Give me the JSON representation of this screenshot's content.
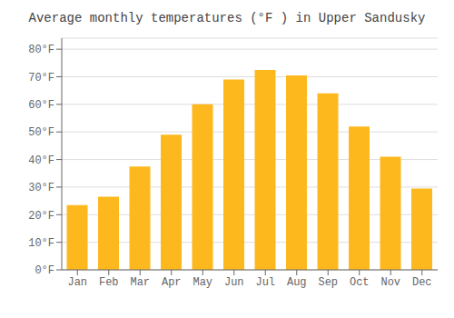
{
  "chart_data": {
    "type": "bar",
    "title": "Average monthly temperatures (°F ) in Upper Sandusky",
    "categories": [
      "Jan",
      "Feb",
      "Mar",
      "Apr",
      "May",
      "Jun",
      "Jul",
      "Aug",
      "Sep",
      "Oct",
      "Nov",
      "Dec"
    ],
    "values": [
      23.5,
      26.5,
      37.5,
      49.0,
      60.0,
      69.0,
      72.5,
      70.5,
      64.0,
      52.0,
      41.0,
      29.5
    ],
    "color": "#FDB81E",
    "ylim": [
      0,
      84
    ],
    "yticks": [
      {
        "value": 0,
        "label": "0°F"
      },
      {
        "value": 10,
        "label": "10°F"
      },
      {
        "value": 20,
        "label": "20°F"
      },
      {
        "value": 30,
        "label": "30°F"
      },
      {
        "value": 40,
        "label": "40°F"
      },
      {
        "value": 50,
        "label": "50°F"
      },
      {
        "value": 60,
        "label": "60°F"
      },
      {
        "value": 70,
        "label": "70°F"
      },
      {
        "value": 80,
        "label": "80°F"
      }
    ],
    "grid": true
  }
}
